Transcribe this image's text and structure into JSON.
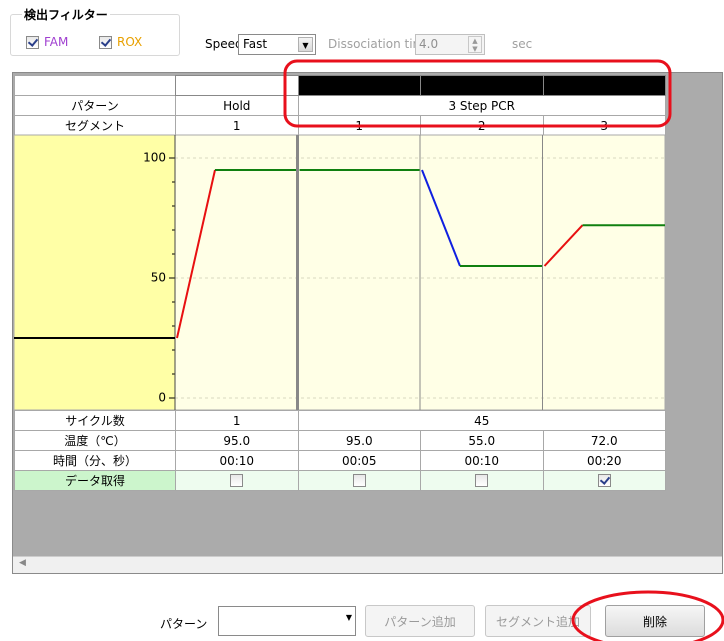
{
  "filter": {
    "title": "検出フィルター",
    "channels": [
      {
        "name": "FAM",
        "checked": true,
        "color": "#a040d0"
      },
      {
        "name": "ROX",
        "checked": true,
        "color": "#e8a000"
      }
    ]
  },
  "speed": {
    "label": "Speed",
    "value": "Fast"
  },
  "dissociation": {
    "label": "Dissociation time",
    "value": "4.0",
    "unit": "sec"
  },
  "table": {
    "row_labels": {
      "pattern": "パターン",
      "segment": "セグメント",
      "cycles": "サイクル数",
      "temp": "温度（℃）",
      "time": "時間（分、秒）",
      "acquire": "データ取得"
    },
    "patterns": [
      {
        "name": "Hold",
        "cycles": 1,
        "segments": [
          {
            "number": 1,
            "temp": "95.0",
            "time": "00:10",
            "acquire": false
          }
        ]
      },
      {
        "name": "3 Step PCR",
        "cycles": 45,
        "segments": [
          {
            "number": 1,
            "temp": "95.0",
            "time": "00:05",
            "acquire": false
          },
          {
            "number": 2,
            "temp": "55.0",
            "time": "00:10",
            "acquire": false
          },
          {
            "number": 3,
            "temp": "72.0",
            "time": "00:20",
            "acquire": true
          }
        ]
      }
    ]
  },
  "chart": {
    "ylim": [
      0,
      100
    ],
    "yticks": [
      0,
      50,
      100
    ],
    "minor_yticks": [
      10,
      20,
      30,
      40,
      60,
      70,
      80,
      90
    ],
    "start_temp": 25
  },
  "bottom": {
    "pattern_label": "パターン",
    "add_pattern": "パターン追加",
    "add_segment": "セグメント追加",
    "delete": "削除"
  }
}
